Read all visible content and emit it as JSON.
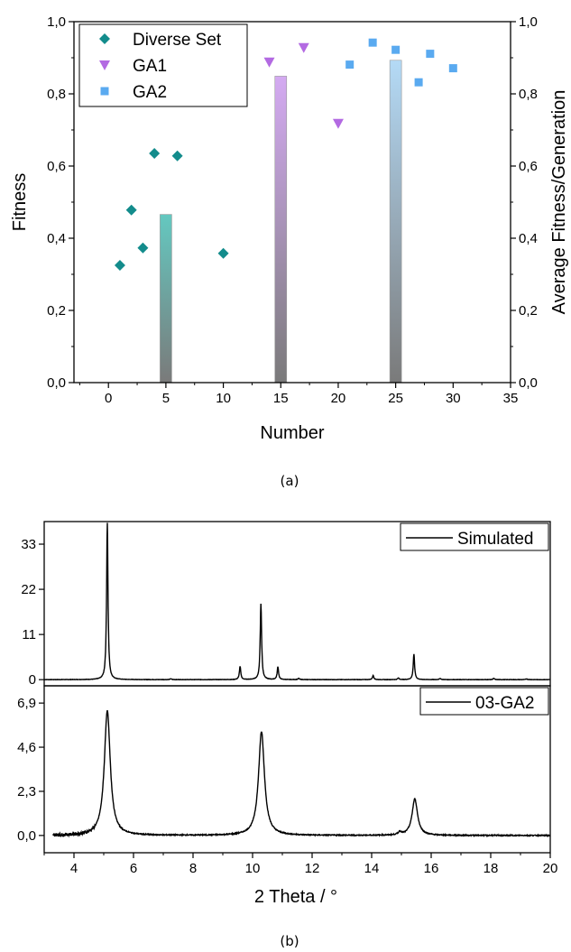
{
  "chart_data": [
    {
      "type": "scatter",
      "xlabel": "Number",
      "ylabel": "Fitness",
      "y2label": "Average Fitness/Generation",
      "xlim": [
        -3,
        35
      ],
      "ylim": [
        0,
        1.0
      ],
      "xticks": [
        "0",
        "5",
        "10",
        "15",
        "20",
        "25",
        "30",
        "35"
      ],
      "yticks": [
        "0,0",
        "0,2",
        "0,4",
        "0,6",
        "0,8",
        "1,0"
      ],
      "legend_position": "top-left",
      "caption": "(a)",
      "series": [
        {
          "name": "Diverse Set",
          "marker": "diamond",
          "color": "#138c8c",
          "x": [
            1,
            2,
            3,
            4,
            6,
            10
          ],
          "y": [
            0.325,
            0.478,
            0.373,
            0.635,
            0.628,
            0.358
          ]
        },
        {
          "name": "GA1",
          "marker": "triangle-down",
          "color": "#b36ae2",
          "x": [
            14,
            17,
            20
          ],
          "y": [
            0.888,
            0.928,
            0.718
          ]
        },
        {
          "name": "GA2",
          "marker": "square",
          "color": "#5aaaf0",
          "x": [
            21,
            23,
            25,
            27,
            28,
            30
          ],
          "y": [
            0.881,
            0.942,
            0.922,
            0.832,
            0.911,
            0.871
          ]
        }
      ],
      "bars": [
        {
          "x": 5,
          "value": 0.466,
          "color": "#64c8c0"
        },
        {
          "x": 15,
          "value": 0.849,
          "color": "#d4aaf2"
        },
        {
          "x": 25,
          "value": 0.893,
          "color": "#b4daf6"
        }
      ]
    },
    {
      "type": "line",
      "xlabel": "2 Theta / °",
      "xlim": [
        3,
        20
      ],
      "xticks": [
        "4",
        "6",
        "8",
        "10",
        "12",
        "14",
        "16",
        "18",
        "20"
      ],
      "caption": "(b)",
      "panels": [
        {
          "name": "Simulated",
          "ylim": [
            -1.5,
            38.5
          ],
          "yticks": [
            "0",
            "11",
            "22",
            "33"
          ],
          "baseline": 0,
          "peaks": [
            [
              5.12,
              38.2,
              0.028
            ],
            [
              7.25,
              0.2,
              0.03
            ],
            [
              9.58,
              3.2,
              0.028
            ],
            [
              10.28,
              18.5,
              0.028
            ],
            [
              10.85,
              3.1,
              0.028
            ],
            [
              11.55,
              0.3,
              0.03
            ],
            [
              14.05,
              1.0,
              0.028
            ],
            [
              14.9,
              0.4,
              0.03
            ],
            [
              15.42,
              6.2,
              0.028
            ],
            [
              16.3,
              0.3,
              0.03
            ],
            [
              18.1,
              0.3,
              0.03
            ],
            [
              19.2,
              0.2,
              0.03
            ]
          ]
        },
        {
          "name": "03-GA2",
          "ylim": [
            -0.9,
            7.8
          ],
          "yticks": [
            "0,0",
            "2,3",
            "4,6",
            "6,9"
          ],
          "baseline": 0,
          "peaks": [
            [
              5.12,
              6.5,
              0.12
            ],
            [
              10.3,
              5.4,
              0.12
            ],
            [
              15.45,
              1.9,
              0.11
            ],
            [
              14.95,
              0.15,
              0.06
            ]
          ]
        }
      ]
    }
  ]
}
